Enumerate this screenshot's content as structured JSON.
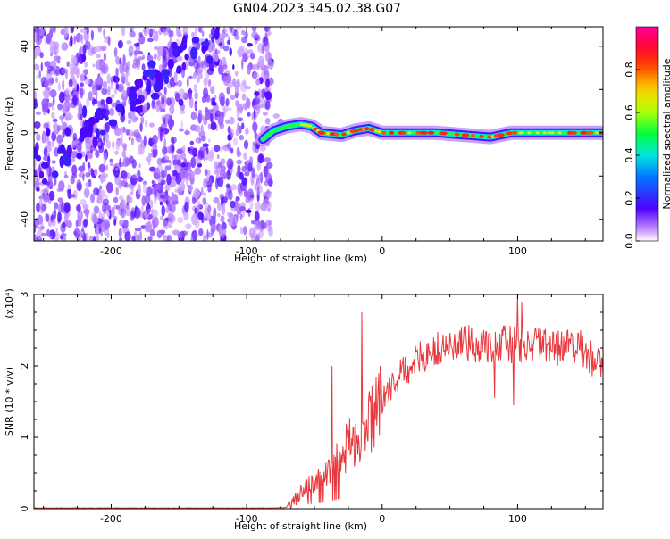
{
  "title": "GN04.2023.345.02.38.G07",
  "chart_data": [
    {
      "type": "heatmap",
      "xlabel": "Height of straight line (km)",
      "ylabel": "Frequency (Hz)",
      "xlim": [
        -257,
        163
      ],
      "ylim": [
        -50,
        49
      ],
      "xticks": [
        -200,
        -100,
        0,
        100
      ],
      "yticks": [
        -40,
        -20,
        0,
        20,
        40
      ],
      "colorbar": {
        "label": "Normalized spectral amplitude",
        "range": [
          0,
          1
        ],
        "ticks": [
          "0.0",
          "0.2",
          "0.4",
          "0.6",
          "0.8"
        ],
        "ticks_values": [
          0,
          0.2,
          0.4,
          0.6,
          0.8
        ]
      },
      "noise_region_x": [
        -257,
        -82
      ],
      "diagonal_streak": {
        "x_start": -257,
        "y_start": -20,
        "x_end": -130,
        "y_end": 45
      },
      "ridge_points": [
        {
          "x": -88,
          "y": -3,
          "a": 0.35
        },
        {
          "x": -80,
          "y": 1,
          "a": 0.55
        },
        {
          "x": -70,
          "y": 3,
          "a": 0.6
        },
        {
          "x": -60,
          "y": 4,
          "a": 0.6
        },
        {
          "x": -52,
          "y": 3,
          "a": 0.7
        },
        {
          "x": -45,
          "y": 0,
          "a": 0.95
        },
        {
          "x": -30,
          "y": -1,
          "a": 0.9
        },
        {
          "x": -20,
          "y": 1,
          "a": 0.85
        },
        {
          "x": -10,
          "y": 2,
          "a": 0.85
        },
        {
          "x": 0,
          "y": 0,
          "a": 0.95
        },
        {
          "x": 20,
          "y": 0,
          "a": 0.95
        },
        {
          "x": 40,
          "y": 0,
          "a": 0.85
        },
        {
          "x": 60,
          "y": -1,
          "a": 0.9
        },
        {
          "x": 80,
          "y": -2,
          "a": 0.95
        },
        {
          "x": 95,
          "y": 0,
          "a": 0.85
        },
        {
          "x": 110,
          "y": 0,
          "a": 0.6
        },
        {
          "x": 130,
          "y": 0,
          "a": 0.7
        },
        {
          "x": 150,
          "y": 0,
          "a": 0.95
        },
        {
          "x": 163,
          "y": 0,
          "a": 0.95
        }
      ]
    },
    {
      "type": "line",
      "xlabel": "Height of straight line (km)",
      "ylabel": "SNR (10 * v/v)",
      "y_multiplier": "(x10⁴)",
      "xlim": [
        -257,
        163
      ],
      "ylim": [
        0,
        3
      ],
      "xticks": [
        -200,
        -100,
        0,
        100
      ],
      "yticks": [
        0,
        1,
        2,
        3
      ],
      "color": "#e8383d",
      "series": [
        {
          "x": [
            -257,
            -200,
            -150,
            -100,
            -80,
            -70,
            -65,
            -60,
            -55,
            -50,
            -45,
            -40,
            -35,
            -30,
            -25,
            -20,
            -15,
            -10,
            -5,
            0,
            5,
            10,
            15,
            20,
            25,
            30,
            35,
            40,
            45,
            50,
            55,
            60,
            65,
            70,
            75,
            80,
            85,
            90,
            95,
            100,
            105,
            110,
            115,
            120,
            125,
            130,
            135,
            140,
            145,
            150,
            155,
            160,
            163
          ],
          "values": [
            0.01,
            0.01,
            0.01,
            0.01,
            0.01,
            0.02,
            0.1,
            0.25,
            0.3,
            0.35,
            0.4,
            0.5,
            0.6,
            0.75,
            0.9,
            1.0,
            1.1,
            1.2,
            1.35,
            1.5,
            1.65,
            1.8,
            1.9,
            2.0,
            2.05,
            2.15,
            2.2,
            2.2,
            2.25,
            2.25,
            2.3,
            2.3,
            2.3,
            2.3,
            2.3,
            2.3,
            2.3,
            2.3,
            2.3,
            2.35,
            2.3,
            2.3,
            2.3,
            2.25,
            2.25,
            2.25,
            2.3,
            2.3,
            2.25,
            2.2,
            2.1,
            2.0,
            1.95
          ]
        }
      ],
      "spikes": [
        {
          "x": -37,
          "y": 2.0
        },
        {
          "x": -15,
          "y": 2.75
        },
        {
          "x": 75,
          "y": 2.5
        },
        {
          "x": 98,
          "y": 2.55
        },
        {
          "x": 100,
          "y": 3.0
        },
        {
          "x": 103,
          "y": 2.9
        },
        {
          "x": 97,
          "y": 1.45
        },
        {
          "x": 83,
          "y": 1.55
        }
      ]
    }
  ]
}
